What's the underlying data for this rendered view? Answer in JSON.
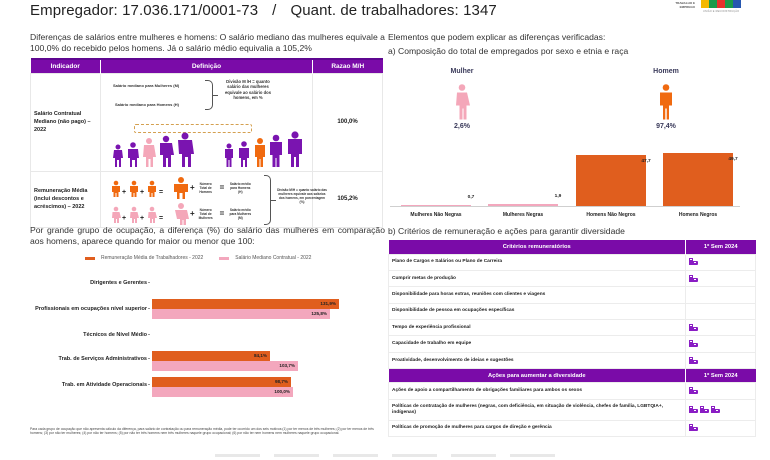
{
  "header": {
    "employer_label": "Empregador: 17.036.171/0001-73",
    "separator": "/",
    "workers_label": "Quant. de trabalhadores: 1347"
  },
  "logo": {
    "ministry_text": "TRABALHO E EMPREGO",
    "brand_text": "BRASIL",
    "tagline": "UNIÃO E RECONSTRUÇÃO",
    "flag_colors": [
      "#f5b800",
      "#1b9a4a",
      "#e5322d",
      "#1b9a4a",
      "#2757b0"
    ]
  },
  "salary_diff": {
    "intro": "Diferenças de salários entre mulheres e homens: O salário mediano das mulheres equivale a 100,0% do recebido pelos homens. Já o salário médio equivalia a 105,2%",
    "table": {
      "headers": [
        "Indicador",
        "Definição",
        "Razao M/H"
      ],
      "rows": [
        {
          "indicator": "Salário Contratual Mediano (não pago) – 2022",
          "definition": {
            "line1": "Salário mediano para Mulheres (M)",
            "line2": "Salário mediano para Homens (H)",
            "division": "Divisão M /H = quanto salário das mulheres equivale ao salário dos homens, em %"
          },
          "value": "100,0%"
        },
        {
          "indicator": "Remuneração Média (inclui descontos e acréscimos) – 2022",
          "definition": {
            "men_total": "Número Total de Homens",
            "men_avg": "Salário médio para Homens (H)",
            "women_total": "Número Total de Mulheres",
            "women_avg": "Salário médio para Mulheres (M)",
            "division": "Divisão M/H = quanto salário das mulheres equivale aos salários dos homens, em porcentagem (%)",
            "plus": "+",
            "equals": "="
          },
          "value": "105,2%"
        }
      ]
    }
  },
  "occupation": {
    "title": "Por grande grupo de ocupação, a diferença (%) do salário das mulheres em comparação aos homens, aparece quando for maior ou menor que 100:",
    "footnote": "Para cada grupo de ocupação que não apresenta cálculo da diferença, para salário de contratação ou para remuneração média, pode ter ocorrido um dos seis motivos:(1) por ter menos de três mulheres; (2) por ter menos de três homens; (3) por não ter mulheres; (4) por não ter homens; (5) por não ter três homens nem três mulheres naquele grupo ocupacional; (6) por não ter nem homens nem mulheres naquele grupo ocupacional."
  },
  "composition": {
    "intro": "Elementos que podem explicar as diferenças verificadas:",
    "subtitle": "a) Composição do total de empregados por sexo e etnia e raça",
    "women_label": "Mulher",
    "women_pct": "2,6%",
    "men_label": "Homem",
    "men_pct": "97,4%"
  },
  "criteria": {
    "subtitle": "b) Critérios de remuneração e ações para garantir diversidade",
    "remun_header": "Critérios remuneratórios",
    "period_header": "1º Sem 2024",
    "remun_rows": [
      {
        "label": "Plano de Cargos e Salários ou Plano de Carreira",
        "marks": 1
      },
      {
        "label": "Cumprir metas de produção",
        "marks": 1
      },
      {
        "label": "Disponibilidade para horas extras, reuniões com clientes e viagens",
        "marks": 0
      },
      {
        "label": "Disponibilidade de pessoa em ocupações específicas",
        "marks": 0
      },
      {
        "label": "Tempo de experiência profissional",
        "marks": 1
      },
      {
        "label": "Capacidade de trabalho em equipe",
        "marks": 1
      },
      {
        "label": "Proatividade, desenvolvimento de ideias e sugestões",
        "marks": 1
      }
    ],
    "div_header": "Ações para aumentar a diversidade",
    "div_period_header": "1º Sem 2024",
    "div_rows": [
      {
        "label": "Ações de apoio a compartilhamento de obrigações familiares para ambos os sexos",
        "marks": 1
      },
      {
        "label": "Políticas de contratação de mulheres (negras, com deficiência, em situação de violência, chefes de família, LGBTQIA+, indígenas)",
        "marks": 3
      },
      {
        "label": "Políticas de promoção de mulheres para cargos de direção e gerência",
        "marks": 1
      }
    ],
    "icon": "workplace-building-icon",
    "icon_color": "#8a1dc4"
  },
  "colors": {
    "purple": "#7a0ba8",
    "orange": "#e05e1e",
    "pink": "#f3a7bd",
    "figure_purple": "#7a14b0",
    "figure_pink": "#f4a7b9",
    "figure_orange": "#f06a10"
  },
  "chart_data": [
    {
      "type": "bar",
      "orientation": "horizontal",
      "title": "Por grande grupo de ocupação, a diferença (%) do salário das mulheres em comparação aos homens",
      "categories": [
        "Dirigentes e Gerentes",
        "Profissionais em ocupações nível superior",
        "Técnicos de Nível Médio",
        "Trab. de Serviços Administrativos",
        "Trab. em Atividade Operacionais"
      ],
      "series": [
        {
          "name": "Remuneração Média de Trabalhadores - 2022",
          "color": "#e05e1e",
          "values": [
            null,
            131.9,
            null,
            84.1,
            98.7
          ],
          "labels": [
            "",
            "131,9%",
            "",
            "84,1%",
            "98,7%"
          ]
        },
        {
          "name": "Salário Mediano Contratual - 2022",
          "color": "#f3a7bd",
          "values": [
            null,
            125.8,
            null,
            103.7,
            100.0
          ],
          "labels": [
            "",
            "125,8%",
            "",
            "103,7%",
            "100,0%"
          ]
        }
      ],
      "legend_position": "top",
      "grid": false
    },
    {
      "type": "bar",
      "orientation": "vertical",
      "title": "Composição do total de empregados por sexo e etnia e raça",
      "categories": [
        "Mulheres Não Negras",
        "Mulheres Negras",
        "Homens Não Negros",
        "Homens Negros"
      ],
      "values": [
        0.7,
        1.9,
        47.7,
        49.7
      ],
      "labels": [
        "0,7",
        "1,9",
        "47,7",
        "49,7"
      ],
      "colors": [
        "#f3a7bd",
        "#f3a7bd",
        "#e05e1e",
        "#e05e1e"
      ],
      "ylim": [
        0,
        50
      ],
      "grid": false
    }
  ]
}
